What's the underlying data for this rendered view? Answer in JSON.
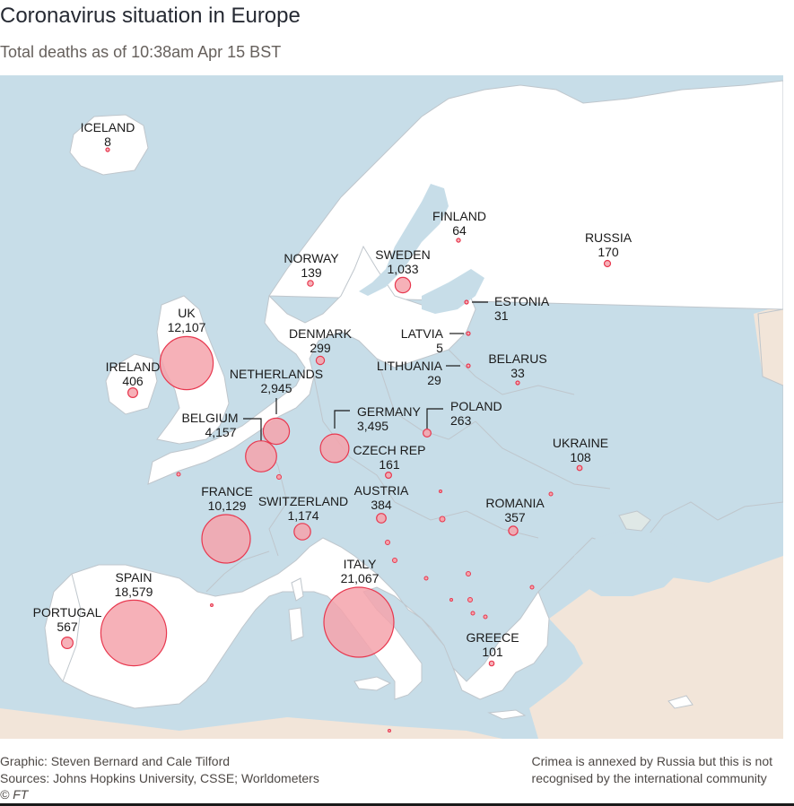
{
  "header": {
    "title": "Coronavirus situation in Europe",
    "subtitle": "Total deaths as of 10:38am Apr 15 BST"
  },
  "colors": {
    "sea": "#c7dde8",
    "land": "#ffffff",
    "nonEurope": "#f2e5d9",
    "border": "#bfc6cc",
    "bubbleFill": "#f5a3ab",
    "bubbleStroke": "#e8384f",
    "crimea": "#dfe8e6"
  },
  "countries": [
    {
      "id": "iceland",
      "name": "ICELAND",
      "value": "8",
      "deaths": 8
    },
    {
      "id": "finland",
      "name": "FINLAND",
      "value": "64",
      "deaths": 64
    },
    {
      "id": "russia",
      "name": "RUSSIA",
      "value": "170",
      "deaths": 170
    },
    {
      "id": "norway",
      "name": "NORWAY",
      "value": "139",
      "deaths": 139
    },
    {
      "id": "sweden",
      "name": "SWEDEN",
      "value": "1,033",
      "deaths": 1033
    },
    {
      "id": "estonia",
      "name": "ESTONIA",
      "value": "31",
      "deaths": 31
    },
    {
      "id": "uk",
      "name": "UK",
      "value": "12,107",
      "deaths": 12107
    },
    {
      "id": "denmark",
      "name": "DENMARK",
      "value": "299",
      "deaths": 299
    },
    {
      "id": "latvia",
      "name": "LATVIA",
      "value": "5",
      "deaths": 5
    },
    {
      "id": "ireland",
      "name": "IRELAND",
      "value": "406",
      "deaths": 406
    },
    {
      "id": "lithuania",
      "name": "LITHUANIA",
      "value": "29",
      "deaths": 29
    },
    {
      "id": "belarus",
      "name": "BELARUS",
      "value": "33",
      "deaths": 33
    },
    {
      "id": "netherlands",
      "name": "NETHERLANDS",
      "value": "2,945",
      "deaths": 2945
    },
    {
      "id": "belgium",
      "name": "BELGIUM",
      "value": "4,157",
      "deaths": 4157
    },
    {
      "id": "germany",
      "name": "GERMANY",
      "value": "3,495",
      "deaths": 3495
    },
    {
      "id": "poland",
      "name": "POLAND",
      "value": "263",
      "deaths": 263
    },
    {
      "id": "czech",
      "name": "CZECH REP",
      "value": "161",
      "deaths": 161
    },
    {
      "id": "ukraine",
      "name": "UKRAINE",
      "value": "108",
      "deaths": 108
    },
    {
      "id": "france",
      "name": "FRANCE",
      "value": "10,129",
      "deaths": 10129
    },
    {
      "id": "switzerland",
      "name": "SWITZERLAND",
      "value": "1,174",
      "deaths": 1174
    },
    {
      "id": "austria",
      "name": "AUSTRIA",
      "value": "384",
      "deaths": 384
    },
    {
      "id": "romania",
      "name": "ROMANIA",
      "value": "357",
      "deaths": 357
    },
    {
      "id": "spain",
      "name": "SPAIN",
      "value": "18,579",
      "deaths": 18579
    },
    {
      "id": "italy",
      "name": "ITALY",
      "value": "21,067",
      "deaths": 21067
    },
    {
      "id": "portugal",
      "name": "PORTUGAL",
      "value": "567",
      "deaths": 567
    },
    {
      "id": "greece",
      "name": "GREECE",
      "value": "101",
      "deaths": 101
    }
  ],
  "footer": {
    "credit": "Graphic: Steven Bernard and Cale Tilford",
    "sources": "Sources: Johns Hopkins University, CSSE; Worldometers",
    "note_line1": "Crimea is annexed by Russia but this is not",
    "note_line2": "recognised by the international community",
    "logo": "© FT"
  }
}
